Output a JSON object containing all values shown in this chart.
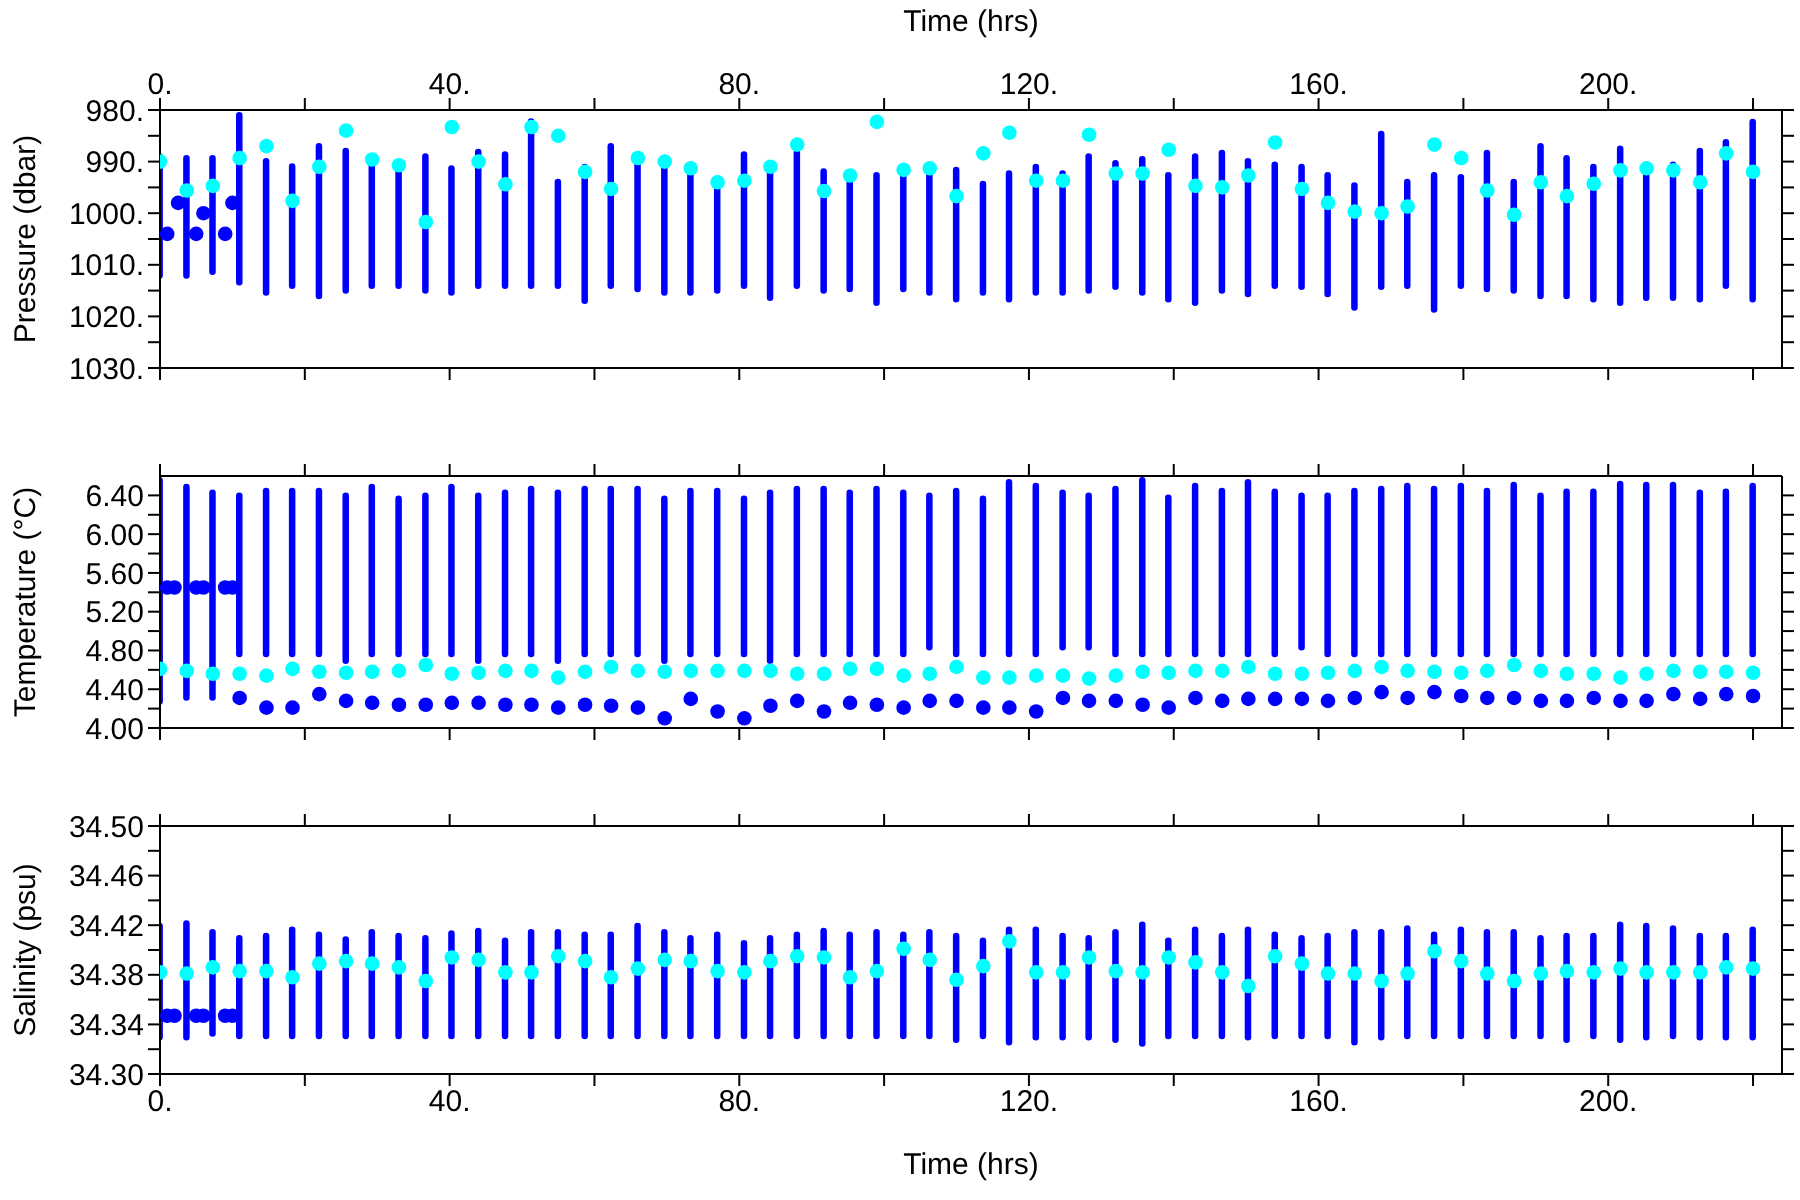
{
  "chart_data": [
    {
      "type": "scatter",
      "ylabel": "Pressure (dbar)",
      "x2label": "Time (hrs)",
      "marker": "circle",
      "tick_labels": "y",
      "xlim": [
        0,
        224
      ],
      "x2lim": [
        0,
        224
      ],
      "xticks": [
        {
          "value": 0,
          "label": null
        },
        {
          "value": 20,
          "label": null
        },
        {
          "value": 40,
          "label": null
        },
        {
          "value": 60,
          "label": null
        },
        {
          "value": 80,
          "label": null
        },
        {
          "value": 100,
          "label": null
        },
        {
          "value": 120,
          "label": null
        },
        {
          "value": 140,
          "label": null
        },
        {
          "value": 160,
          "label": null
        },
        {
          "value": 180,
          "label": null
        },
        {
          "value": 200,
          "label": null
        },
        {
          "value": 220,
          "label": null
        }
      ],
      "x2ticks": [
        {
          "value": 0,
          "label": "0."
        },
        {
          "value": 20,
          "label": null
        },
        {
          "value": 40,
          "label": "40."
        },
        {
          "value": 60,
          "label": null
        },
        {
          "value": 80,
          "label": "80."
        },
        {
          "value": 100,
          "label": null
        },
        {
          "value": 120,
          "label": "120."
        },
        {
          "value": 140,
          "label": null
        },
        {
          "value": 160,
          "label": "160."
        },
        {
          "value": 180,
          "label": null
        },
        {
          "value": 200,
          "label": "200."
        },
        {
          "value": 220,
          "label": null
        }
      ],
      "ylim": [
        1030,
        980
      ],
      "yticks": [
        {
          "value": 980,
          "label": "980."
        },
        {
          "value": 985,
          "label": null
        },
        {
          "value": 990,
          "label": "990."
        },
        {
          "value": 995,
          "label": null
        },
        {
          "value": 1000,
          "label": "1000."
        },
        {
          "value": 1005,
          "label": null
        },
        {
          "value": 1010,
          "label": "1010."
        },
        {
          "value": 1015,
          "label": null
        },
        {
          "value": 1020,
          "label": "1020."
        },
        {
          "value": 1025,
          "label": null
        },
        {
          "value": 1030,
          "label": "1030."
        }
      ],
      "x": [
        0,
        3.7,
        7.3,
        11,
        14.7,
        18.3,
        22,
        25.7,
        29.3,
        33,
        36.7,
        40.3,
        44,
        47.7,
        51.3,
        55,
        58.7,
        62.3,
        66,
        69.7,
        73.3,
        77,
        80.7,
        84.3,
        88,
        91.7,
        95.3,
        99,
        102.7,
        106.3,
        110,
        113.7,
        117.3,
        121,
        124.7,
        128.3,
        132,
        135.7,
        139.3,
        143,
        146.7,
        150.3,
        154,
        157.7,
        161.3,
        165,
        168.7,
        172.3,
        176,
        179.7,
        183.3,
        187,
        190.7,
        194.3,
        198,
        201.7,
        205.3,
        209,
        212.7,
        216.3,
        220
      ],
      "series": [
        {
          "type": "bar",
          "color": "#0000ff",
          "base": [
            988.4,
            988.7,
            988.7,
            980.4,
            989.3,
            990.3,
            986.4,
            987.3,
            989.7,
            989.7,
            988.4,
            990.7,
            987.5,
            988.0,
            981.6,
            993.3,
            990.4,
            986.4,
            989.0,
            990.0,
            991.3,
            992.7,
            988.0,
            990.0,
            987.7,
            991.3,
            992.3,
            992.0,
            992.0,
            991.3,
            991.0,
            993.7,
            991.7,
            990.4,
            991.7,
            988.4,
            989.7,
            988.9,
            992.0,
            988.4,
            987.7,
            989.3,
            990.0,
            990.4,
            992.0,
            994.0,
            984.0,
            993.3,
            992.0,
            992.4,
            987.7,
            993.3,
            986.4,
            988.7,
            990.4,
            986.9,
            990.0,
            990.0,
            987.3,
            985.6,
            981.7
          ],
          "values": [
            24.3,
            24.0,
            23.3,
            33.6,
            26.7,
            24.4,
            30.3,
            28.3,
            25.0,
            25.0,
            27.2,
            25.3,
            27.2,
            26.7,
            33.1,
            21.4,
            27.2,
            28.3,
            26.3,
            26.0,
            24.7,
            22.9,
            26.7,
            27.0,
            27.0,
            24.3,
            23.0,
            26.0,
            23.3,
            24.7,
            26.3,
            22.3,
            25.6,
            25.6,
            24.3,
            27.2,
            25.2,
            27.1,
            25.3,
            29.6,
            27.9,
            27.0,
            24.7,
            24.5,
            24.3,
            24.9,
            30.9,
            21.4,
            27.3,
            22.3,
            27.6,
            22.3,
            30.3,
            28.0,
            26.9,
            31.1,
            27.0,
            27.0,
            30.0,
            29.1,
            35.6
          ]
        },
        {
          "color": "#0000ff",
          "x": [
            1,
            2.5,
            5,
            6,
            9,
            10
          ],
          "values": [
            1004,
            998,
            1004,
            1000,
            1004,
            998
          ]
        },
        {
          "color": "#00ffff",
          "values": [
            990.0,
            995.6,
            994.7,
            989.3,
            987.0,
            997.6,
            991.0,
            984.0,
            989.6,
            990.7,
            1001.7,
            983.3,
            990.0,
            994.4,
            983.3,
            985.0,
            992.0,
            995.3,
            989.3,
            990.0,
            991.3,
            994.0,
            993.7,
            991.0,
            986.7,
            995.7,
            992.7,
            982.3,
            991.6,
            991.3,
            996.7,
            988.4,
            984.4,
            993.7,
            993.7,
            984.8,
            992.3,
            992.3,
            987.7,
            994.7,
            995.0,
            992.7,
            986.3,
            995.3,
            998.0,
            999.7,
            1000.0,
            998.7,
            986.7,
            989.3,
            995.6,
            1000.3,
            994.0,
            996.7,
            994.3,
            991.7,
            991.3,
            991.7,
            994.0,
            988.4,
            992.0
          ]
        }
      ]
    },
    {
      "type": "scatter",
      "ylabel": "Temperature (°C)",
      "marker": "circle",
      "tick_labels": "y",
      "xlim": [
        0,
        224
      ],
      "xticks": [
        {
          "value": 0,
          "label": null
        },
        {
          "value": 20,
          "label": null
        },
        {
          "value": 40,
          "label": null
        },
        {
          "value": 60,
          "label": null
        },
        {
          "value": 80,
          "label": null
        },
        {
          "value": 100,
          "label": null
        },
        {
          "value": 120,
          "label": null
        },
        {
          "value": 140,
          "label": null
        },
        {
          "value": 160,
          "label": null
        },
        {
          "value": 180,
          "label": null
        },
        {
          "value": 200,
          "label": null
        },
        {
          "value": 220,
          "label": null
        }
      ],
      "ylim": [
        4.0,
        6.6
      ],
      "yticks": [
        {
          "value": 4.0,
          "label": "4.00"
        },
        {
          "value": 4.2,
          "label": null
        },
        {
          "value": 4.4,
          "label": "4.40"
        },
        {
          "value": 4.6,
          "label": null
        },
        {
          "value": 4.8,
          "label": "4.80"
        },
        {
          "value": 5.0,
          "label": null
        },
        {
          "value": 5.2,
          "label": "5.20"
        },
        {
          "value": 5.4,
          "label": null
        },
        {
          "value": 5.6,
          "label": "5.60"
        },
        {
          "value": 5.8,
          "label": null
        },
        {
          "value": 6.0,
          "label": "6.00"
        },
        {
          "value": 6.2,
          "label": null
        },
        {
          "value": 6.4,
          "label": "6.40"
        }
      ],
      "x": [
        0,
        3.7,
        7.3,
        11,
        14.7,
        18.3,
        22,
        25.7,
        29.3,
        33,
        36.7,
        40.3,
        44,
        47.7,
        51.3,
        55,
        58.7,
        62.3,
        66,
        69.7,
        73.3,
        77,
        80.7,
        84.3,
        88,
        91.7,
        95.3,
        99,
        102.7,
        106.3,
        110,
        113.7,
        117.3,
        121,
        124.7,
        128.3,
        132,
        135.7,
        139.3,
        143,
        146.7,
        150.3,
        154,
        157.7,
        161.3,
        165,
        168.7,
        172.3,
        176,
        179.7,
        183.3,
        187,
        190.7,
        194.3,
        198,
        201.7,
        205.3,
        209,
        212.7,
        216.3,
        220
      ],
      "series": [
        {
          "type": "bar",
          "color": "#0000ff",
          "base": [
            4.24,
            4.28,
            4.28,
            4.73,
            4.73,
            4.73,
            4.73,
            4.66,
            4.73,
            4.73,
            4.73,
            4.73,
            4.66,
            4.73,
            4.73,
            4.66,
            4.73,
            4.73,
            4.73,
            4.66,
            4.73,
            4.73,
            4.73,
            4.66,
            4.73,
            4.73,
            4.73,
            4.73,
            4.73,
            4.8,
            4.73,
            4.73,
            4.73,
            4.73,
            4.8,
            4.8,
            4.73,
            4.73,
            4.73,
            4.73,
            4.73,
            4.73,
            4.73,
            4.8,
            4.73,
            4.73,
            4.73,
            4.73,
            4.73,
            4.73,
            4.73,
            4.73,
            4.73,
            4.73,
            4.73,
            4.73,
            4.73,
            4.73,
            4.73,
            4.73,
            4.73
          ],
          "values": [
            2.35,
            2.24,
            2.18,
            1.7,
            1.75,
            1.75,
            1.75,
            1.77,
            1.79,
            1.67,
            1.7,
            1.79,
            1.77,
            1.73,
            1.77,
            1.8,
            1.77,
            1.77,
            1.77,
            1.74,
            1.75,
            1.75,
            1.67,
            1.8,
            1.77,
            1.77,
            1.73,
            1.77,
            1.73,
            1.63,
            1.75,
            1.67,
            1.84,
            1.8,
            1.66,
            1.63,
            1.77,
            1.86,
            1.68,
            1.8,
            1.75,
            1.84,
            1.74,
            1.63,
            1.7,
            1.75,
            1.77,
            1.8,
            1.77,
            1.8,
            1.75,
            1.81,
            1.7,
            1.74,
            1.74,
            1.82,
            1.81,
            1.81,
            1.73,
            1.74,
            1.8
          ]
        },
        {
          "color": "#0000ff",
          "x": [
            1,
            2,
            5,
            6,
            9,
            10
          ],
          "values": [
            5.45,
            5.45,
            5.45,
            5.45,
            5.45,
            5.45
          ]
        },
        {
          "color": "#0000ff",
          "x": [
            11,
            14.7,
            18.3,
            22,
            25.7,
            29.3,
            33,
            36.7,
            40.3,
            44,
            47.7,
            51.3,
            55,
            58.7,
            62.3,
            66,
            69.7,
            73.3,
            77,
            80.7,
            84.3,
            88,
            91.7,
            95.3,
            99,
            102.7,
            106.3,
            110,
            113.7,
            117.3,
            121,
            124.7,
            128.3,
            132,
            135.7,
            139.3,
            143,
            146.7,
            150.3,
            154,
            157.7,
            161.3,
            165,
            168.7,
            172.3,
            176,
            179.7,
            183.3,
            187,
            190.7,
            194.3,
            198,
            201.7,
            205.3,
            209,
            212.7,
            216.3,
            220
          ],
          "values": [
            4.31,
            4.21,
            4.21,
            4.35,
            4.28,
            4.26,
            4.24,
            4.24,
            4.26,
            4.26,
            4.24,
            4.24,
            4.21,
            4.24,
            4.23,
            4.21,
            4.1,
            4.3,
            4.17,
            4.1,
            4.23,
            4.28,
            4.17,
            4.26,
            4.24,
            4.21,
            4.28,
            4.28,
            4.21,
            4.21,
            4.17,
            4.31,
            4.28,
            4.28,
            4.24,
            4.21,
            4.31,
            4.28,
            4.3,
            4.3,
            4.3,
            4.28,
            4.31,
            4.37,
            4.31,
            4.37,
            4.33,
            4.31,
            4.31,
            4.28,
            4.28,
            4.31,
            4.28,
            4.28,
            4.35,
            4.3,
            4.35,
            4.33
          ]
        },
        {
          "color": "#00ffff",
          "values": [
            4.61,
            4.59,
            4.56,
            4.56,
            4.54,
            4.61,
            4.58,
            4.57,
            4.58,
            4.59,
            4.65,
            4.56,
            4.57,
            4.59,
            4.59,
            4.52,
            4.58,
            4.63,
            4.59,
            4.58,
            4.59,
            4.59,
            4.59,
            4.59,
            4.56,
            4.56,
            4.61,
            4.61,
            4.54,
            4.56,
            4.63,
            4.52,
            4.52,
            4.54,
            4.54,
            4.51,
            4.54,
            4.58,
            4.57,
            4.59,
            4.59,
            4.63,
            4.56,
            4.56,
            4.57,
            4.59,
            4.63,
            4.59,
            4.58,
            4.57,
            4.59,
            4.65,
            4.59,
            4.56,
            4.56,
            4.52,
            4.56,
            4.59,
            4.58,
            4.58,
            4.57
          ]
        }
      ]
    },
    {
      "type": "scatter",
      "ylabel": "Salinity (psu)",
      "xlabel": "Time (hrs)",
      "marker": "circle",
      "xlim": [
        0,
        224
      ],
      "xticks": [
        {
          "value": 0,
          "label": "0."
        },
        {
          "value": 20,
          "label": null
        },
        {
          "value": 40,
          "label": "40."
        },
        {
          "value": 60,
          "label": null
        },
        {
          "value": 80,
          "label": "80."
        },
        {
          "value": 100,
          "label": null
        },
        {
          "value": 120,
          "label": "120."
        },
        {
          "value": 140,
          "label": null
        },
        {
          "value": 160,
          "label": "160."
        },
        {
          "value": 180,
          "label": null
        },
        {
          "value": 200,
          "label": "200."
        },
        {
          "value": 220,
          "label": null
        }
      ],
      "ylim": [
        34.3,
        34.5
      ],
      "yticks": [
        {
          "value": 34.3,
          "label": "34.30"
        },
        {
          "value": 34.32,
          "label": null
        },
        {
          "value": 34.34,
          "label": "34.34"
        },
        {
          "value": 34.36,
          "label": null
        },
        {
          "value": 34.38,
          "label": "34.38"
        },
        {
          "value": 34.4,
          "label": null
        },
        {
          "value": 34.42,
          "label": "34.42"
        },
        {
          "value": 34.44,
          "label": null
        },
        {
          "value": 34.46,
          "label": "34.46"
        },
        {
          "value": 34.48,
          "label": null
        },
        {
          "value": 34.5,
          "label": "34.50"
        }
      ],
      "x": [
        0,
        3.7,
        7.3,
        11,
        14.7,
        18.3,
        22,
        25.7,
        29.3,
        33,
        36.7,
        40.3,
        44,
        47.7,
        51.3,
        55,
        58.7,
        62.3,
        66,
        69.7,
        73.3,
        77,
        80.7,
        84.3,
        88,
        91.7,
        95.3,
        99,
        102.7,
        106.3,
        110,
        113.7,
        117.3,
        121,
        124.7,
        128.3,
        132,
        135.7,
        139.3,
        143,
        146.7,
        150.3,
        154,
        157.7,
        161.3,
        165,
        168.7,
        172.3,
        176,
        179.7,
        183.3,
        187,
        190.7,
        194.3,
        198,
        201.7,
        205.3,
        209,
        212.7,
        216.3,
        220
      ],
      "series": [
        {
          "type": "bar",
          "color": "#0000ff",
          "base": [
            34.327,
            34.327,
            34.33,
            34.328,
            34.328,
            34.328,
            34.328,
            34.328,
            34.328,
            34.328,
            34.328,
            34.328,
            34.328,
            34.328,
            34.328,
            34.328,
            34.328,
            34.328,
            34.328,
            34.328,
            34.328,
            34.328,
            34.328,
            34.328,
            34.328,
            34.328,
            34.328,
            34.328,
            34.328,
            34.328,
            34.325,
            34.328,
            34.323,
            34.327,
            34.327,
            34.327,
            34.325,
            34.322,
            34.328,
            34.328,
            34.328,
            34.327,
            34.328,
            34.328,
            34.328,
            34.323,
            34.327,
            34.328,
            34.328,
            34.328,
            34.328,
            34.328,
            34.328,
            34.325,
            34.328,
            34.325,
            34.327,
            34.328,
            34.327,
            34.327,
            34.327
          ],
          "values": [
            0.095,
            0.097,
            0.087,
            0.084,
            0.086,
            0.091,
            0.087,
            0.083,
            0.089,
            0.086,
            0.084,
            0.088,
            0.09,
            0.082,
            0.089,
            0.089,
            0.087,
            0.087,
            0.094,
            0.089,
            0.084,
            0.087,
            0.08,
            0.084,
            0.087,
            0.09,
            0.087,
            0.089,
            0.087,
            0.089,
            0.089,
            0.082,
            0.096,
            0.092,
            0.087,
            0.085,
            0.092,
            0.101,
            0.082,
            0.091,
            0.086,
            0.092,
            0.087,
            0.084,
            0.086,
            0.094,
            0.09,
            0.092,
            0.087,
            0.091,
            0.089,
            0.089,
            0.084,
            0.089,
            0.086,
            0.098,
            0.095,
            0.092,
            0.087,
            0.087,
            0.092
          ]
        },
        {
          "color": "#0000ff",
          "x": [
            1,
            2,
            5,
            6,
            9,
            10
          ],
          "values": [
            34.347,
            34.347,
            34.347,
            34.347,
            34.347,
            34.347
          ]
        },
        {
          "color": "#00ffff",
          "values": [
            34.382,
            34.381,
            34.386,
            34.383,
            34.383,
            34.378,
            34.389,
            34.391,
            34.389,
            34.386,
            34.375,
            34.394,
            34.392,
            34.382,
            34.382,
            34.395,
            34.391,
            34.378,
            34.385,
            34.392,
            34.391,
            34.383,
            34.382,
            34.391,
            34.395,
            34.394,
            34.378,
            34.383,
            34.401,
            34.392,
            34.376,
            34.387,
            34.407,
            34.382,
            34.382,
            34.394,
            34.383,
            34.382,
            34.394,
            34.39,
            34.382,
            34.371,
            34.395,
            34.389,
            34.381,
            34.381,
            34.375,
            34.381,
            34.399,
            34.391,
            34.381,
            34.375,
            34.381,
            34.383,
            34.382,
            34.385,
            34.382,
            34.382,
            34.382,
            34.386,
            34.385
          ]
        }
      ]
    }
  ]
}
